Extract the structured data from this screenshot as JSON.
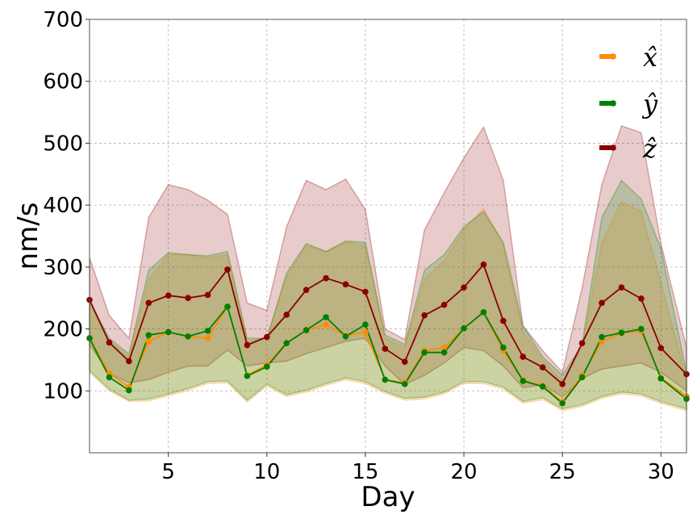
{
  "chart_data": {
    "type": "line",
    "xlabel": "Day",
    "ylabel": "nm/s",
    "xlim": [
      1,
      31.3
    ],
    "ylim": [
      0,
      700
    ],
    "xticks": [
      5,
      10,
      15,
      20,
      25,
      30
    ],
    "yticks": [
      100,
      200,
      300,
      400,
      500,
      600,
      700
    ],
    "grid": true,
    "legend_position": "top-right",
    "x": [
      1,
      2,
      3,
      4,
      5,
      6,
      7,
      8,
      9,
      10,
      11,
      12,
      13,
      14,
      15,
      16,
      17,
      18,
      19,
      20,
      21,
      22,
      23,
      24,
      25,
      26,
      27,
      28,
      29,
      30,
      31.3
    ],
    "series": [
      {
        "name": "x̂",
        "color": "#ff8c00",
        "values": [
          185,
          128,
          106,
          180,
          195,
          188,
          185,
          236,
          125,
          142,
          177,
          198,
          207,
          189,
          195,
          118,
          113,
          165,
          170,
          201,
          227,
          165,
          117,
          108,
          82,
          125,
          180,
          193,
          197,
          121,
          91
        ],
        "band_lower": [
          130,
          100,
          83,
          84,
          92,
          101,
          112,
          113,
          82,
          108,
          91,
          98,
          109,
          118,
          112,
          96,
          85,
          87,
          95,
          112,
          112,
          103,
          80,
          86,
          68,
          75,
          88,
          95,
          92,
          80,
          68
        ],
        "band_upper": [
          240,
          180,
          155,
          280,
          320,
          320,
          315,
          320,
          180,
          185,
          285,
          335,
          325,
          340,
          335,
          185,
          170,
          280,
          310,
          360,
          395,
          335,
          195,
          150,
          115,
          170,
          340,
          405,
          390,
          275,
          120
        ]
      },
      {
        "name": "ŷ",
        "color": "#008000",
        "values": [
          185,
          122,
          101,
          190,
          195,
          188,
          197,
          236,
          124,
          139,
          177,
          198,
          219,
          188,
          207,
          118,
          111,
          162,
          162,
          201,
          227,
          170,
          116,
          107,
          80,
          122,
          187,
          194,
          200,
          120,
          87
        ],
        "band_lower": [
          133,
          103,
          85,
          87,
          95,
          104,
          115,
          116,
          85,
          111,
          94,
          101,
          112,
          121,
          115,
          99,
          88,
          90,
          98,
          115,
          115,
          106,
          83,
          89,
          71,
          78,
          91,
          98,
          95,
          83,
          71
        ],
        "band_upper": [
          245,
          185,
          160,
          295,
          323,
          320,
          318,
          325,
          185,
          185,
          290,
          338,
          325,
          342,
          340,
          190,
          175,
          295,
          320,
          365,
          390,
          340,
          205,
          155,
          125,
          175,
          380,
          440,
          410,
          330,
          130
        ]
      },
      {
        "name": "ẑ",
        "color": "#8b0000",
        "values": [
          247,
          178,
          148,
          242,
          254,
          250,
          255,
          296,
          174,
          187,
          223,
          263,
          282,
          272,
          260,
          168,
          147,
          222,
          239,
          267,
          304,
          213,
          155,
          138,
          111,
          177,
          242,
          267,
          249,
          169,
          127
        ],
        "band_lower": [
          175,
          128,
          113,
          118,
          130,
          140,
          140,
          166,
          140,
          145,
          148,
          160,
          170,
          180,
          185,
          140,
          110,
          125,
          145,
          170,
          165,
          140,
          105,
          110,
          90,
          120,
          135,
          140,
          145,
          130,
          100
        ],
        "band_upper": [
          315,
          222,
          185,
          380,
          433,
          425,
          408,
          385,
          242,
          230,
          365,
          440,
          425,
          442,
          393,
          200,
          183,
          360,
          420,
          476,
          526,
          440,
          205,
          165,
          130,
          266,
          433,
          528,
          517,
          338,
          170
        ]
      }
    ]
  }
}
